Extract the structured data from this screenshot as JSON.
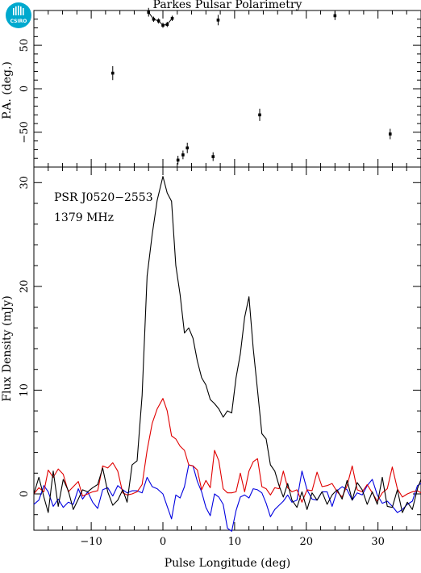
{
  "title": "Parkes Pulsar Polarimetry",
  "logo": {
    "text": "CSIRO",
    "color": "#00A9CE"
  },
  "annotations": [
    "PSR J0520−2553",
    "1379 MHz"
  ],
  "colors": {
    "total": "#000000",
    "linear": "#e00000",
    "circular": "#0000e0",
    "axes": "#000000"
  },
  "chart_data": [
    {
      "type": "scatter",
      "panel": "top",
      "ylabel": "P.A. (deg.)",
      "xlim": [
        -18,
        36
      ],
      "ylim": [
        -90,
        90
      ],
      "y_ticks": [
        -50,
        0,
        50
      ],
      "y_ticklabels": [
        "−50",
        "0",
        "50"
      ],
      "points": [
        {
          "x": -7.0,
          "y": 18,
          "err": 8
        },
        {
          "x": -2.0,
          "y": 88,
          "err": 5
        },
        {
          "x": -1.3,
          "y": 80,
          "err": 3
        },
        {
          "x": -0.6,
          "y": 78,
          "err": 3
        },
        {
          "x": 0.0,
          "y": 73,
          "err": 3
        },
        {
          "x": 0.6,
          "y": 74,
          "err": 3
        },
        {
          "x": 1.3,
          "y": 81,
          "err": 3
        },
        {
          "x": 2.1,
          "y": -82,
          "err": 5
        },
        {
          "x": 2.8,
          "y": -76,
          "err": 5
        },
        {
          "x": 3.4,
          "y": -68,
          "err": 6
        },
        {
          "x": 7.0,
          "y": -78,
          "err": 5
        },
        {
          "x": 7.7,
          "y": 79,
          "err": 6
        },
        {
          "x": 13.5,
          "y": -30,
          "err": 7
        },
        {
          "x": 24.0,
          "y": 84,
          "err": 5
        },
        {
          "x": 31.7,
          "y": -52,
          "err": 6
        }
      ],
      "fit_curve": {
        "x": [
          -2.0,
          -1.3,
          -0.6,
          0.0,
          0.6,
          1.3
        ],
        "y": [
          88,
          80,
          78,
          73,
          74,
          81
        ]
      }
    },
    {
      "type": "line",
      "panel": "bottom",
      "xlabel": "Pulse Longitude (deg)",
      "ylabel": "Flux Density (mJy)",
      "xlim": [
        -18,
        36
      ],
      "ylim": [
        -3.5,
        31.5
      ],
      "x_ticks": [
        -10,
        0,
        10,
        20,
        30
      ],
      "x_ticklabels": [
        "−10",
        "0",
        "10",
        "20",
        "30"
      ],
      "y_ticks": [
        0,
        10,
        20,
        30
      ],
      "y_ticklabels": [
        "0",
        "10",
        "20",
        "30"
      ],
      "x": [
        -18.0,
        -17.3,
        -16.6,
        -16.0,
        -15.3,
        -14.6,
        -13.9,
        -13.2,
        -12.5,
        -11.8,
        -11.2,
        -10.5,
        -9.8,
        -9.1,
        -8.4,
        -7.7,
        -7.0,
        -6.3,
        -5.6,
        -5.0,
        -4.3,
        -3.6,
        -2.9,
        -2.2,
        -1.5,
        -0.8,
        0.0,
        0.6,
        1.2,
        1.8,
        2.4,
        3.0,
        3.6,
        4.2,
        4.8,
        5.4,
        6.0,
        6.6,
        7.2,
        7.8,
        8.4,
        9.0,
        9.6,
        10.2,
        10.8,
        11.4,
        12.0,
        12.6,
        13.2,
        13.8,
        14.4,
        15.0,
        15.6,
        16.2,
        16.8,
        17.4,
        18.0,
        18.7,
        19.4,
        20.1,
        20.8,
        21.5,
        22.2,
        22.9,
        23.6,
        24.3,
        25.0,
        25.7,
        26.4,
        27.1,
        27.8,
        28.5,
        29.2,
        29.9,
        30.6,
        31.3,
        32.0,
        32.7,
        33.4,
        34.1,
        34.8,
        35.5,
        36.0
      ],
      "series": [
        {
          "name": "",
          "color": "#000000",
          "values": [
            0,
            1.6,
            -0.3,
            -1.8,
            2.2,
            -1.2,
            1.4,
            0.3,
            -1.5,
            -0.5,
            0.4,
            0.2,
            0.6,
            0.9,
            2.5,
            0.2,
            -1.1,
            -0.6,
            0.4,
            -0.8,
            2.8,
            3.2,
            9.5,
            21.0,
            25.0,
            28.3,
            30.6,
            29.0,
            28.2,
            22.0,
            19.2,
            15.5,
            16.0,
            15.0,
            12.8,
            11.2,
            10.5,
            9.1,
            8.7,
            8.2,
            7.4,
            8.0,
            7.8,
            11.2,
            13.5,
            17.0,
            19.0,
            14.0,
            10.0,
            5.8,
            5.3,
            2.8,
            2.2,
            0.8,
            -0.3,
            1.0,
            -0.6,
            -1.3,
            0.2,
            -1.5,
            0.1,
            -0.6,
            0.2,
            -1.0,
            -0.1,
            0.4,
            -0.5,
            1.3,
            -0.6,
            1.1,
            0.4,
            -1.0,
            0.2,
            -1.0,
            1.6,
            -1.2,
            -1.3,
            0.4,
            -1.8,
            -0.8,
            -1.5,
            0.5,
            1.4
          ]
        },
        {
          "name": "",
          "color": "#e00000",
          "values": [
            0,
            0.6,
            0.2,
            2.3,
            1.6,
            2.4,
            1.9,
            0.2,
            0.7,
            1.2,
            -0.2,
            0.0,
            0.2,
            0.3,
            2.7,
            2.5,
            3.0,
            2.2,
            0.1,
            -0.1,
            0.0,
            0.2,
            0.9,
            4.2,
            6.8,
            8.2,
            9.2,
            8.0,
            5.6,
            5.3,
            4.6,
            4.2,
            2.8,
            2.7,
            2.3,
            0.4,
            1.3,
            0.6,
            4.2,
            3.2,
            0.5,
            0.1,
            0.1,
            0.2,
            2.0,
            0.2,
            2.2,
            3.1,
            3.4,
            0.7,
            0.5,
            -0.1,
            0.6,
            0.5,
            2.2,
            0.6,
            0.2,
            0.4,
            -0.8,
            0.4,
            0.3,
            2.1,
            0.7,
            0.8,
            1.0,
            0.2,
            -0.3,
            0.8,
            2.7,
            0.4,
            0.2,
            0.9,
            0.1,
            -0.7,
            0.1,
            0.5,
            2.6,
            0.5,
            -0.3,
            0.0,
            0.2,
            0.3,
            0.1
          ]
        },
        {
          "name": "",
          "color": "#0000e0",
          "values": [
            -1.0,
            -0.6,
            0.8,
            0.2,
            -1.2,
            -0.5,
            -1.3,
            -0.8,
            -1.0,
            0.5,
            -0.5,
            0.2,
            -0.8,
            -1.4,
            0.4,
            0.6,
            -0.2,
            0.8,
            0.4,
            0.1,
            0.3,
            0.3,
            0.1,
            1.6,
            0.7,
            0.5,
            0.0,
            -1.2,
            -2.4,
            -0.1,
            -0.4,
            0.7,
            2.8,
            2.7,
            1.2,
            0.2,
            -1.3,
            -2.1,
            0.0,
            -0.3,
            -1.0,
            -3.3,
            -3.6,
            -1.6,
            -0.3,
            -0.1,
            -0.4,
            0.5,
            0.4,
            0.1,
            -0.9,
            -2.2,
            -1.5,
            -1.1,
            -0.7,
            -0.1,
            -0.8,
            -0.6,
            2.2,
            0.4,
            -0.5,
            -0.6,
            0.2,
            0.2,
            -1.2,
            0.3,
            0.7,
            0.4,
            -0.6,
            0.1,
            -0.1,
            0.8,
            1.4,
            -0.1,
            -0.9,
            -0.7,
            -1.2,
            -1.8,
            -1.5,
            -1.0,
            -0.7,
            0.8,
            1.0
          ]
        }
      ]
    }
  ]
}
